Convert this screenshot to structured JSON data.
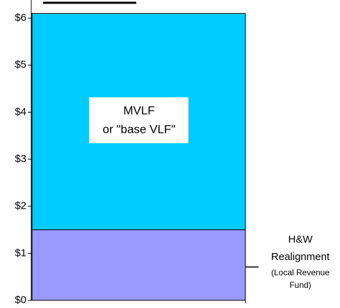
{
  "chart_data": {
    "type": "stacked_bar",
    "series": [
      {
        "label_lines": [
          "H&W",
          "Realignment",
          "(Local Revenue",
          "Fund)"
        ],
        "color": "#9999ff",
        "values": [
          1.5
        ]
      },
      {
        "label_lines": [
          "MVLF",
          "or \"base VLF\""
        ],
        "color": "#00ccff",
        "values": [
          4.6
        ]
      }
    ],
    "ylim": [
      0,
      6.4
    ],
    "yticks": [
      {
        "value": 0,
        "label": "$0"
      },
      {
        "value": 1,
        "label": "$1"
      },
      {
        "value": 2,
        "label": "$2"
      },
      {
        "value": 3,
        "label": "$3"
      },
      {
        "value": 4,
        "label": "$4"
      },
      {
        "value": 5,
        "label": "$5"
      },
      {
        "value": 6,
        "label": "$6"
      }
    ]
  }
}
